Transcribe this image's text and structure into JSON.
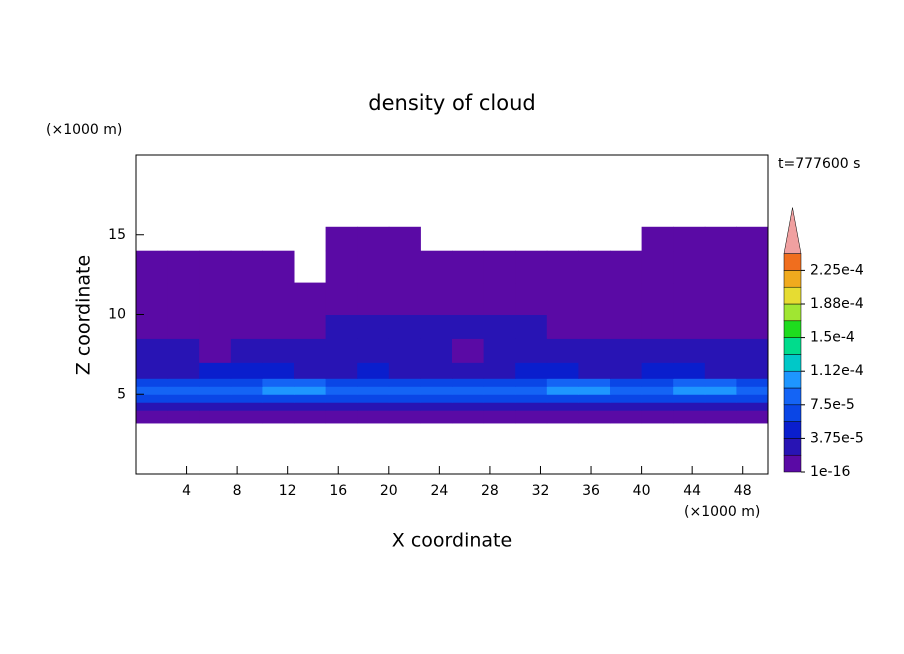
{
  "chart_data": {
    "type": "contour",
    "title": "density of cloud",
    "y_unit": "(×1000 m)",
    "x_unit": "(×1000 m)",
    "time_label": "t=777600 s",
    "xlabel": "X coordinate",
    "ylabel": "Z coordinate",
    "xlim": [
      0,
      50
    ],
    "ylim": [
      0,
      20
    ],
    "xticks": [
      4,
      8,
      12,
      16,
      20,
      24,
      28,
      32,
      36,
      40,
      44,
      48
    ],
    "yticks": [
      5,
      10,
      15
    ],
    "x_edges": [
      0,
      2.5,
      5,
      7.5,
      10,
      12.5,
      15,
      17.5,
      20,
      22.5,
      25,
      27.5,
      30,
      32.5,
      35,
      37.5,
      40,
      42.5,
      45,
      47.5,
      50
    ],
    "z_edges": [
      3.2,
      4,
      4.5,
      5,
      5.5,
      6,
      7,
      8.5,
      10,
      12,
      14,
      15.5
    ],
    "values": [
      [
        1e-05,
        1e-05,
        1e-05,
        1e-05,
        1e-05,
        1e-05,
        1e-05,
        1e-05,
        1e-05,
        1e-05,
        1e-05,
        1e-05,
        1e-05,
        1e-05,
        1e-05,
        1e-05,
        1e-05,
        1e-05,
        1e-05,
        1e-05
      ],
      [
        3e-05,
        3e-05,
        3e-05,
        3e-05,
        3e-05,
        3e-05,
        3e-05,
        3e-05,
        3e-05,
        3e-05,
        3e-05,
        3e-05,
        3e-05,
        3e-05,
        3e-05,
        3e-05,
        3e-05,
        3e-05,
        3e-05,
        3e-05
      ],
      [
        6e-05,
        6e-05,
        7e-05,
        7e-05,
        7e-05,
        7e-05,
        6e-05,
        6e-05,
        6e-05,
        6e-05,
        6e-05,
        6e-05,
        6e-05,
        7e-05,
        7e-05,
        7e-05,
        6e-05,
        7e-05,
        7e-05,
        6e-05
      ],
      [
        8e-05,
        8e-05,
        8e-05,
        9e-05,
        0.00011,
        0.00011,
        9e-05,
        8e-05,
        8e-05,
        8e-05,
        8e-05,
        8e-05,
        8e-05,
        0.00011,
        0.00011,
        9e-05,
        9e-05,
        0.00011,
        0.00011,
        8e-05
      ],
      [
        6e-05,
        6e-05,
        6e-05,
        6e-05,
        8e-05,
        8e-05,
        6e-05,
        6e-05,
        6e-05,
        6e-05,
        6e-05,
        6e-05,
        6e-05,
        8e-05,
        8e-05,
        6e-05,
        6e-05,
        8e-05,
        8e-05,
        6e-05
      ],
      [
        3e-05,
        3e-05,
        4e-05,
        4e-05,
        4e-05,
        3e-05,
        3e-05,
        4e-05,
        3e-05,
        3e-05,
        3e-05,
        3e-05,
        4e-05,
        4e-05,
        3e-05,
        3e-05,
        4e-05,
        4e-05,
        3e-05,
        3e-05
      ],
      [
        2.5e-05,
        2.5e-05,
        1e-05,
        2.5e-05,
        2.5e-05,
        2.5e-05,
        2.5e-05,
        2.5e-05,
        2.5e-05,
        2.5e-05,
        1e-05,
        2.5e-05,
        2.5e-05,
        2.5e-05,
        2.5e-05,
        2.5e-05,
        2.5e-05,
        2.5e-05,
        2.5e-05,
        2.5e-05
      ],
      [
        1e-05,
        1e-05,
        1e-05,
        1e-05,
        1e-05,
        1e-05,
        2e-05,
        2e-05,
        2e-05,
        2e-05,
        2e-05,
        2e-05,
        2e-05,
        1e-05,
        1e-05,
        1e-05,
        1e-05,
        1e-05,
        1e-05,
        1e-05
      ],
      [
        1e-05,
        1e-05,
        1e-05,
        1e-05,
        1e-05,
        1e-05,
        1e-05,
        1e-05,
        1e-05,
        1e-05,
        1e-05,
        1e-05,
        1e-05,
        1e-05,
        1e-05,
        1e-05,
        1e-05,
        1e-05,
        1e-05,
        1e-05
      ],
      [
        1e-05,
        1e-05,
        1e-05,
        1e-05,
        1e-05,
        null,
        1e-05,
        1e-05,
        1e-05,
        1e-05,
        1e-05,
        1e-05,
        1e-05,
        1e-05,
        1e-05,
        1e-05,
        1e-05,
        1e-05,
        1e-05,
        1e-05
      ],
      [
        null,
        null,
        null,
        null,
        null,
        null,
        1e-05,
        1e-05,
        1e-05,
        null,
        null,
        null,
        null,
        null,
        null,
        null,
        1e-05,
        1e-05,
        1e-05,
        1e-05
      ]
    ],
    "colorbar": {
      "levels": [
        1e-16,
        1.875e-05,
        3.75e-05,
        5.625e-05,
        7.5e-05,
        9.375e-05,
        0.0001125,
        0.00013125,
        0.00015,
        0.00016875,
        0.0001875,
        0.00020625,
        0.000225,
        0.00024375
      ],
      "colors": [
        "#5a0aa5",
        "#2814b4",
        "#0a1ecd",
        "#0a46e6",
        "#1464f5",
        "#1e96ff",
        "#00c8c8",
        "#00dc8c",
        "#1edc1e",
        "#a0e632",
        "#e6dc32",
        "#f0aa1e",
        "#f06e1e",
        "#f0a0a0"
      ],
      "ticks": [
        {
          "value": 1e-16,
          "label": "1e-16"
        },
        {
          "value": 3.75e-05,
          "label": "3.75e-5"
        },
        {
          "value": 7.5e-05,
          "label": "7.5e-5"
        },
        {
          "value": 0.0001125,
          "label": "1.12e-4"
        },
        {
          "value": 0.00015,
          "label": "1.5e-4"
        },
        {
          "value": 0.0001875,
          "label": "1.88e-4"
        },
        {
          "value": 0.000225,
          "label": "2.25e-4"
        }
      ]
    }
  }
}
